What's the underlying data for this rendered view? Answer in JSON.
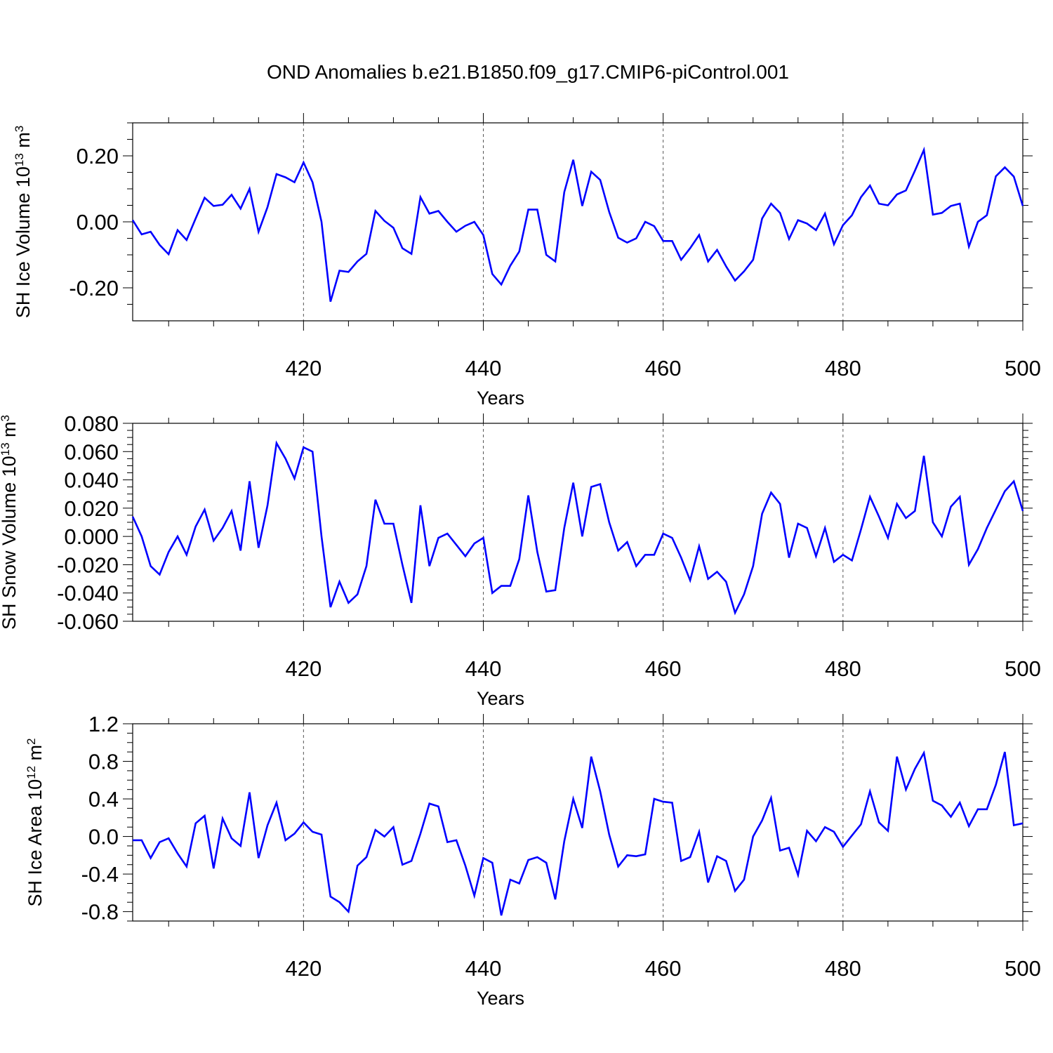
{
  "title": "OND Anomalies b.e21.B1850.f09_g17.CMIP6-piControl.001",
  "line_color": "#0000ff",
  "chart_data": [
    {
      "type": "line",
      "ylabel": "SH Ice Volume 10",
      "ylabel_exp": "13",
      "ylabel_unit": " m",
      "ylabel_unit_exp": "3",
      "xlabel": "Years",
      "xlim": [
        401,
        500
      ],
      "ylim": [
        -0.3,
        0.3
      ],
      "x_ticks": [
        "420",
        "440",
        "460",
        "480",
        "500"
      ],
      "y_ticks": [
        {
          "value": -0.2,
          "label": "-0.20"
        },
        {
          "value": 0.0,
          "label": "0.00"
        },
        {
          "value": 0.2,
          "label": "0.20"
        }
      ],
      "grid_x": true,
      "series": [
        {
          "x_start": 401,
          "values": [
            0.005,
            -0.038,
            -0.03,
            -0.07,
            -0.098,
            -0.025,
            -0.055,
            0.01,
            0.073,
            0.048,
            0.052,
            0.082,
            0.04,
            0.1,
            -0.03,
            0.045,
            0.145,
            0.135,
            0.12,
            0.18,
            0.12,
            0.0,
            -0.242,
            -0.148,
            -0.152,
            -0.12,
            -0.097,
            0.033,
            0.003,
            -0.018,
            -0.08,
            -0.097,
            0.075,
            0.025,
            0.033,
            0.0,
            -0.03,
            -0.012,
            0.0,
            -0.04,
            -0.158,
            -0.19,
            -0.133,
            -0.09,
            0.037,
            0.037,
            -0.1,
            -0.12,
            0.09,
            0.188,
            0.048,
            0.152,
            0.127,
            0.03,
            -0.048,
            -0.063,
            -0.05,
            0.0,
            -0.013,
            -0.058,
            -0.058,
            -0.115,
            -0.08,
            -0.04,
            -0.12,
            -0.085,
            -0.135,
            -0.178,
            -0.15,
            -0.115,
            0.01,
            0.055,
            0.027,
            -0.052,
            0.005,
            -0.005,
            -0.025,
            0.025,
            -0.068,
            -0.01,
            0.02,
            0.075,
            0.11,
            0.055,
            0.05,
            0.083,
            0.095,
            0.155,
            0.218,
            0.022,
            0.027,
            0.048,
            0.055,
            -0.075,
            0.0,
            0.02,
            0.138,
            0.165,
            0.137,
            0.048
          ]
        }
      ]
    },
    {
      "type": "line",
      "ylabel": "SH Snow Volume 10",
      "ylabel_exp": "13",
      "ylabel_unit": " m",
      "ylabel_unit_exp": "3",
      "xlabel": "Years",
      "xlim": [
        401,
        500
      ],
      "ylim": [
        -0.06,
        0.08
      ],
      "x_ticks": [
        "420",
        "440",
        "460",
        "480",
        "500"
      ],
      "y_ticks": [
        {
          "value": -0.06,
          "label": "-0.060"
        },
        {
          "value": -0.04,
          "label": "-0.040"
        },
        {
          "value": -0.02,
          "label": "-0.020"
        },
        {
          "value": 0.0,
          "label": "0.000"
        },
        {
          "value": 0.02,
          "label": "0.020"
        },
        {
          "value": 0.04,
          "label": "0.040"
        },
        {
          "value": 0.06,
          "label": "0.060"
        },
        {
          "value": 0.08,
          "label": "0.080"
        }
      ],
      "grid_x": true,
      "series": [
        {
          "x_start": 401,
          "values": [
            0.014,
            0.0,
            -0.021,
            -0.027,
            -0.011,
            0.0,
            -0.013,
            0.007,
            0.019,
            -0.003,
            0.006,
            0.018,
            -0.01,
            0.039,
            -0.008,
            0.022,
            0.066,
            0.055,
            0.041,
            0.063,
            0.06,
            0.0,
            -0.05,
            -0.032,
            -0.047,
            -0.041,
            -0.021,
            0.026,
            0.009,
            0.009,
            -0.02,
            -0.047,
            0.022,
            -0.021,
            -0.001,
            0.002,
            -0.006,
            -0.014,
            -0.005,
            -0.001,
            -0.04,
            -0.035,
            -0.035,
            -0.016,
            0.029,
            -0.011,
            -0.039,
            -0.038,
            0.006,
            0.038,
            0.0,
            0.035,
            0.037,
            0.01,
            -0.01,
            -0.004,
            -0.021,
            -0.013,
            -0.013,
            0.002,
            -0.001,
            -0.015,
            -0.031,
            -0.007,
            -0.03,
            -0.025,
            -0.032,
            -0.054,
            -0.041,
            -0.021,
            0.016,
            0.031,
            0.023,
            -0.015,
            0.009,
            0.006,
            -0.014,
            0.006,
            -0.018,
            -0.013,
            -0.017,
            0.005,
            0.028,
            0.014,
            -0.001,
            0.023,
            0.013,
            0.018,
            0.057,
            0.01,
            0.0,
            0.021,
            0.028,
            -0.02,
            -0.009,
            0.006,
            0.019,
            0.032,
            0.039,
            0.018
          ]
        }
      ]
    },
    {
      "type": "line",
      "ylabel": "SH Ice Area 10",
      "ylabel_exp": "12",
      "ylabel_unit": " m",
      "ylabel_unit_exp": "2",
      "xlabel": "Years",
      "xlim": [
        401,
        500
      ],
      "ylim": [
        -0.9,
        1.2
      ],
      "x_ticks": [
        "420",
        "440",
        "460",
        "480",
        "500"
      ],
      "y_ticks": [
        {
          "value": -0.8,
          "label": "-0.8"
        },
        {
          "value": -0.4,
          "label": "-0.4"
        },
        {
          "value": 0.0,
          "label": "0.0"
        },
        {
          "value": 0.4,
          "label": "0.4"
        },
        {
          "value": 0.8,
          "label": "0.8"
        },
        {
          "value": 1.2,
          "label": "1.2"
        }
      ],
      "grid_x": true,
      "series": [
        {
          "x_start": 401,
          "values": [
            -0.04,
            -0.04,
            -0.23,
            -0.06,
            -0.02,
            -0.18,
            -0.32,
            0.14,
            0.22,
            -0.34,
            0.19,
            -0.02,
            -0.1,
            0.47,
            -0.23,
            0.12,
            0.36,
            -0.04,
            0.03,
            0.15,
            0.05,
            0.02,
            -0.64,
            -0.7,
            -0.8,
            -0.31,
            -0.22,
            0.07,
            0.0,
            0.1,
            -0.3,
            -0.26,
            0.03,
            0.35,
            0.32,
            -0.06,
            -0.04,
            -0.31,
            -0.63,
            -0.23,
            -0.28,
            -0.84,
            -0.46,
            -0.5,
            -0.25,
            -0.22,
            -0.28,
            -0.67,
            -0.05,
            0.4,
            0.09,
            0.85,
            0.48,
            0.02,
            -0.32,
            -0.2,
            -0.21,
            -0.19,
            0.4,
            0.37,
            0.36,
            -0.26,
            -0.22,
            0.05,
            -0.49,
            -0.21,
            -0.26,
            -0.58,
            -0.46,
            0.0,
            0.17,
            0.41,
            -0.15,
            -0.12,
            -0.41,
            0.06,
            -0.05,
            0.1,
            0.05,
            -0.11,
            0.01,
            0.13,
            0.48,
            0.15,
            0.06,
            0.85,
            0.5,
            0.72,
            0.89,
            0.38,
            0.33,
            0.21,
            0.36,
            0.11,
            0.29,
            0.29,
            0.55,
            0.9,
            0.12,
            0.14
          ]
        }
      ]
    }
  ]
}
